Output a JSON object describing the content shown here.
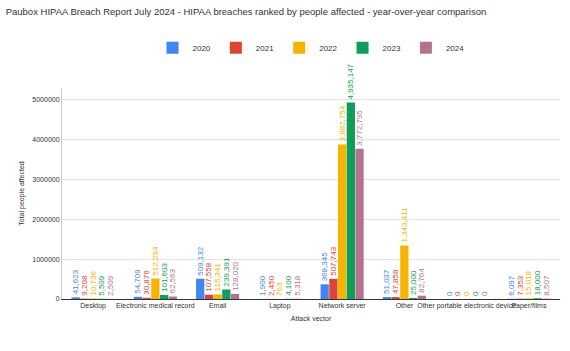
{
  "chart_data": {
    "type": "bar",
    "title": "Paubox HIPAA Breach Report July 2024 - HIPAA breaches ranked by people affected - year-over-year comparison",
    "x_label": "Attack vector",
    "y_label": "Total people affected",
    "categories": [
      "Desktop",
      "Electronic medical record",
      "Email",
      "Laptop",
      "Network server",
      "Other",
      "Other portable electronic device",
      "Paper/films"
    ],
    "series": [
      {
        "name": "2020",
        "color": "#4285f4",
        "values": [
          41623,
          54709,
          509132,
          1900,
          368345,
          51037,
          0,
          6097
        ],
        "value_labels": [
          "41,623",
          "54,709",
          "509,132",
          "1,900",
          "368,345",
          "51,037",
          "0",
          "6,097"
        ]
      },
      {
        "name": "2021",
        "color": "#db4437",
        "values": [
          9208,
          30876,
          107558,
          2450,
          507743,
          47858,
          0,
          7353
        ],
        "value_labels": [
          "9,208",
          "30,876",
          "107,558",
          "2,450",
          "507,743",
          "47,858",
          "0",
          "7,353"
        ]
      },
      {
        "name": "2022",
        "color": "#f4b400",
        "values": [
          10736,
          512294,
          115341,
          763,
          3882754,
          1343411,
          0,
          15018
        ],
        "value_labels": [
          "10,736",
          "512,294",
          "115,341",
          "763",
          "3,882,754",
          "1,343,411",
          "0",
          "15,018"
        ]
      },
      {
        "name": "2023",
        "color": "#0f9d58",
        "values": [
          5509,
          101603,
          239391,
          4100,
          4935147,
          25000,
          0,
          18000
        ],
        "value_labels": [
          "5,509",
          "101,603",
          "239,391",
          "4,100",
          "4,935,147",
          "25,000",
          "0",
          "18,000"
        ]
      },
      {
        "name": "2024",
        "color": "#b3738f",
        "values": [
          2509,
          62563,
          128020,
          5318,
          3772795,
          82764,
          0,
          8507
        ],
        "value_labels": [
          "2,509",
          "62,563",
          "128,020",
          "5,318",
          "3,772,795",
          "82,764",
          "0",
          "8,507"
        ]
      }
    ],
    "ylim": [
      0,
      5300000
    ],
    "yticks": [
      0,
      1000000,
      2000000,
      3000000,
      4000000,
      5000000
    ],
    "grid": true,
    "legend": "top",
    "data_labels": true
  }
}
